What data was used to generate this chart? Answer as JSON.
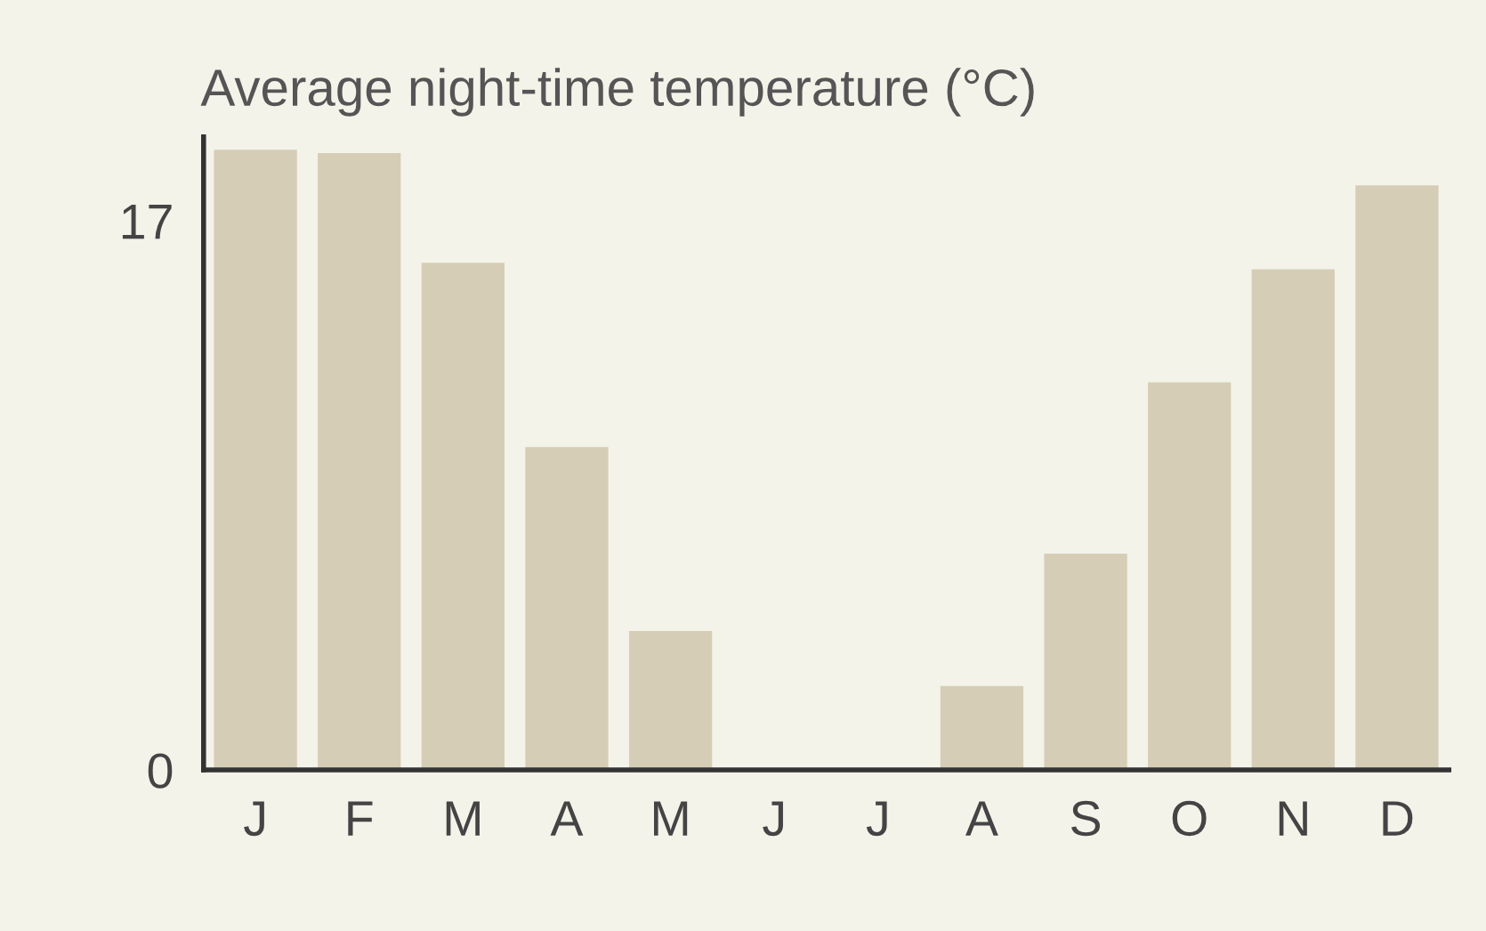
{
  "chart_data": {
    "type": "bar",
    "title": "Average night-time temperature (°C)",
    "categories": [
      "J",
      "F",
      "M",
      "A",
      "M",
      "J",
      "J",
      "A",
      "S",
      "O",
      "N",
      "D"
    ],
    "values": [
      19.2,
      19.1,
      15.7,
      10.0,
      4.3,
      0,
      0,
      2.6,
      6.7,
      12.0,
      15.5,
      18.1
    ],
    "color": "#d6cdb6",
    "ylim": [
      0,
      19.6
    ],
    "yticks": [
      0,
      17
    ],
    "grid": false,
    "legend": false
  }
}
